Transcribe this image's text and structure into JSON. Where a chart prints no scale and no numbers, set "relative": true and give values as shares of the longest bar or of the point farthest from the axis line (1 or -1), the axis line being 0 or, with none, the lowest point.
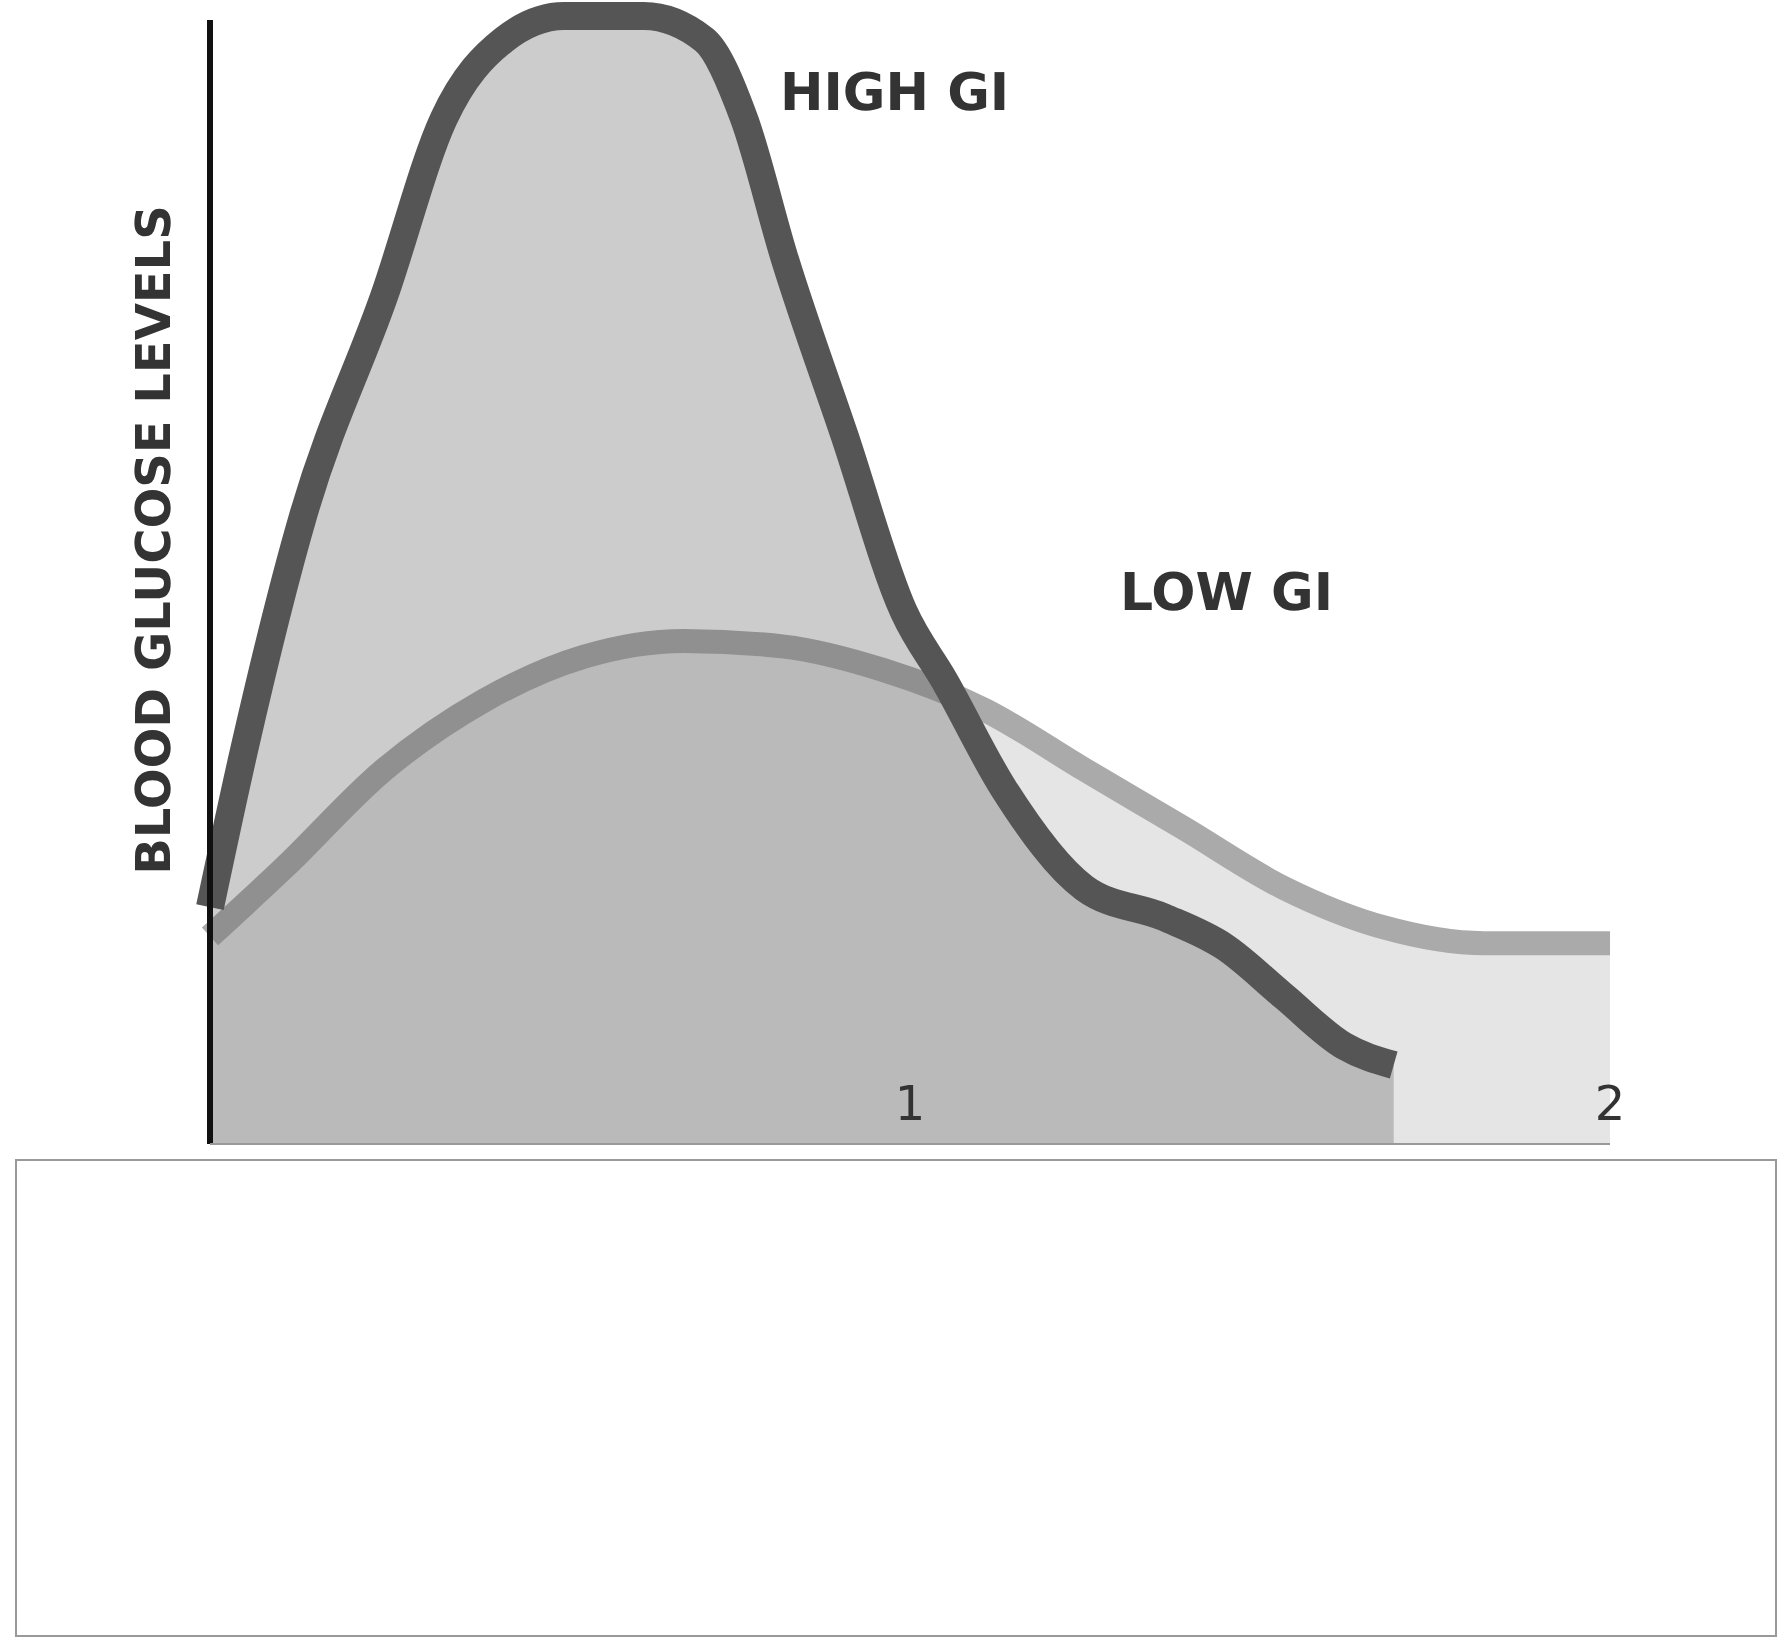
{
  "chart_data": {
    "type": "area",
    "relative": true,
    "ylabel": "BLOOD GLUCOSE LEVELS",
    "xlim": [
      0,
      2
    ],
    "xticks": [
      1,
      2
    ],
    "tick_labels": "x",
    "grid": false,
    "marker": "none",
    "line_style": "solid",
    "series": [
      {
        "name": "HIGH GI",
        "color": "#555555",
        "x": [
          0,
          0.049,
          0.134,
          0.249,
          0.334,
          0.42,
          0.506,
          0.62,
          0.706,
          0.763,
          0.82,
          0.906,
          0.991,
          1.049,
          1.134,
          1.249,
          1.363,
          1.449,
          1.534,
          1.62,
          1.691
        ],
        "values": [
          0.21,
          0.35,
          0.559,
          0.752,
          0.909,
          0.979,
          1,
          1,
          0.979,
          0.909,
          0.787,
          0.629,
          0.472,
          0.411,
          0.315,
          0.227,
          0.201,
          0.175,
          0.131,
          0.087,
          0.07
        ]
      },
      {
        "name": "LOW GI",
        "color": "#aaaaaa",
        "x": [
          0,
          0.106,
          0.249,
          0.391,
          0.534,
          0.677,
          0.82,
          0.963,
          1.106,
          1.249,
          1.391,
          1.534,
          1.677,
          1.82,
          2
        ],
        "values": [
          0.184,
          0.245,
          0.332,
          0.393,
          0.432,
          0.446,
          0.441,
          0.42,
          0.385,
          0.332,
          0.28,
          0.227,
          0.192,
          0.178,
          0.178
        ]
      }
    ]
  }
}
